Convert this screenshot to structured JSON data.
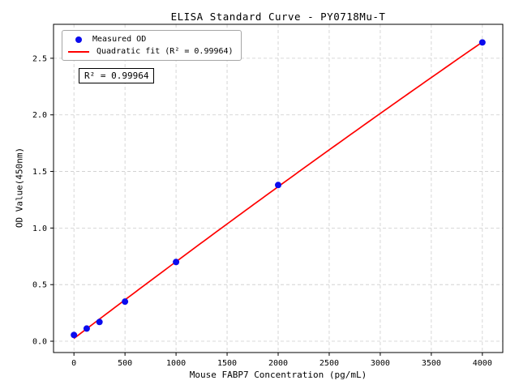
{
  "chart_data": {
    "type": "scatter",
    "title": "ELISA Standard Curve - PY0718Mu-T",
    "xlabel": "Mouse FABP7 Concentration (pg/mL)",
    "ylabel": "OD Value(450nm)",
    "x": [
      0,
      125,
      250,
      500,
      1000,
      2000,
      4000
    ],
    "y": [
      0.055,
      0.112,
      0.17,
      0.35,
      0.7,
      1.38,
      2.64
    ],
    "series": [
      {
        "name": "Measured OD",
        "kind": "scatter"
      },
      {
        "name": "Quadratic fit (R² = 0.99964)",
        "kind": "line"
      }
    ],
    "legend": [
      {
        "label": "Measured OD",
        "marker": "point"
      },
      {
        "label": "Quadratic fit (R² = 0.99964)",
        "marker": "line"
      }
    ],
    "annotation": "R² = 0.99964",
    "r_squared": 0.99964,
    "x_ticks": [
      0,
      500,
      1000,
      1500,
      2000,
      2500,
      3000,
      3500,
      4000
    ],
    "y_ticks": [
      0.0,
      0.5,
      1.0,
      1.5,
      2.0,
      2.5
    ],
    "xlim": [
      -200,
      4200
    ],
    "ylim": [
      -0.1,
      2.8
    ],
    "grid": true,
    "legend_position": "upper left",
    "colors": {
      "marker": "#0b0bee",
      "line": "#ff0000",
      "grid": "#cccccc",
      "axis": "#000000"
    }
  }
}
